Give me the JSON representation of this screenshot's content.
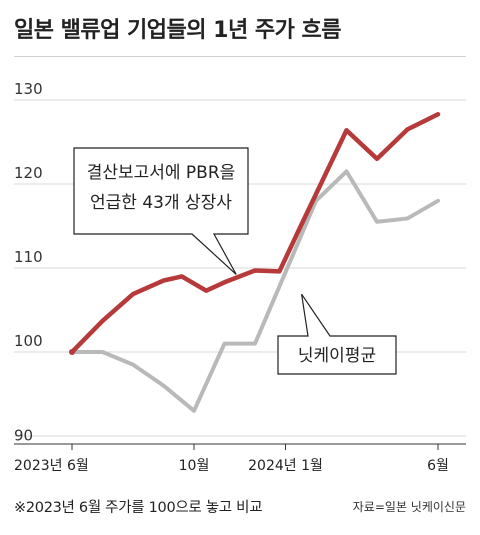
{
  "title": "일본 밸류업 기업들의 1년 주가 흐름",
  "footnote": "※2023년 6월 주가를 100으로 놓고 비교",
  "source": "자료=일본 닛케이신문",
  "chart_data": {
    "type": "line",
    "title": "일본 밸류업 기업들의 1년 주가 흐름",
    "ylim": [
      90,
      130
    ],
    "yticks": [
      90,
      100,
      110,
      120,
      130
    ],
    "x_index_range": [
      0,
      12
    ],
    "xticks": [
      {
        "index": 0,
        "label": "2023년 6월"
      },
      {
        "index": 4,
        "label": "10월"
      },
      {
        "index": 7,
        "label": "2024년 1월"
      },
      {
        "index": 12,
        "label": "6월"
      }
    ],
    "grid": true,
    "series": [
      {
        "name": "결산보고서에 PBR을 언급한 43개 상장사",
        "color": "#b73a3a",
        "x": [
          0,
          1,
          2,
          3,
          3.6,
          4.4,
          5,
          6,
          6.8,
          7.5,
          9,
          10,
          11,
          12
        ],
        "values": [
          100,
          103.7,
          106.9,
          108.5,
          109,
          107.3,
          108.3,
          109.7,
          109.6,
          115,
          126.4,
          123,
          126.5,
          128.3
        ]
      },
      {
        "name": "닛케이평균",
        "color": "#b9b9b9",
        "x": [
          0,
          1,
          2,
          3,
          4,
          5,
          6,
          7,
          8,
          9,
          10,
          11,
          12
        ],
        "values": [
          100,
          100,
          98.5,
          96,
          93,
          101,
          101,
          109.5,
          118,
          121.5,
          115.5,
          115.9,
          118
        ]
      }
    ],
    "annotations": [
      {
        "series": 0,
        "lines": [
          "결산보고서에 PBR을",
          "언급한 43개 상장사"
        ]
      },
      {
        "series": 1,
        "lines": [
          "닛케이평균"
        ]
      }
    ]
  }
}
